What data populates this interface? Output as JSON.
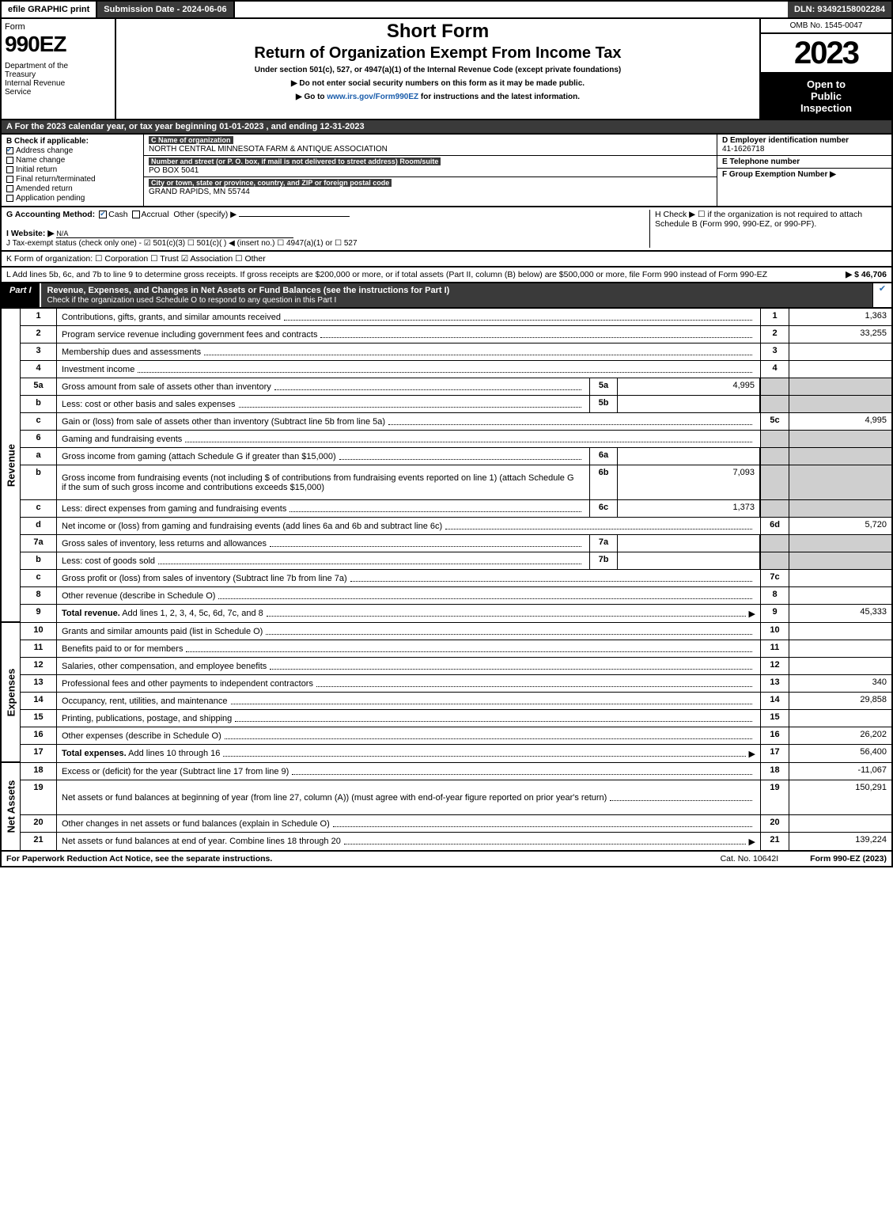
{
  "topbar": {
    "efile": "efile GRAPHIC print",
    "submission": "Submission Date - 2024-06-06",
    "dln": "DLN: 93492158002284"
  },
  "header": {
    "form": "Form",
    "formno": "990EZ",
    "dept": "Department of the Treasury\nInternal Revenue Service",
    "short": "Short Form",
    "title": "Return of Organization Exempt From Income Tax",
    "under": "Under section 501(c), 527, or 4947(a)(1) of the Internal Revenue Code (except private foundations)",
    "donot": "▶ Do not enter social security numbers on this form as it may be made public.",
    "goto": "▶ Go to www.irs.gov/Form990EZ for instructions and the latest information.",
    "omb": "OMB No. 1545-0047",
    "year": "2023",
    "open": "Open to Public Inspection"
  },
  "rowA": "A  For the 2023 calendar year, or tax year beginning 01-01-2023 , and ending 12-31-2023",
  "boxB": {
    "label": "B  Check if applicable:",
    "items": [
      {
        "label": "Address change",
        "checked": true
      },
      {
        "label": "Name change",
        "checked": false
      },
      {
        "label": "Initial return",
        "checked": false
      },
      {
        "label": "Final return/terminated",
        "checked": false
      },
      {
        "label": "Amended return",
        "checked": false
      },
      {
        "label": "Application pending",
        "checked": false
      }
    ]
  },
  "boxC": {
    "name_hdr": "C Name of organization",
    "name": "NORTH CENTRAL MINNESOTA FARM & ANTIQUE ASSOCIATION",
    "addr_hdr": "Number and street (or P. O. box, if mail is not delivered to street address)        Room/suite",
    "addr": "PO BOX 5041",
    "city_hdr": "City or town, state or province, country, and ZIP or foreign postal code",
    "city": "GRAND RAPIDS, MN  55744"
  },
  "boxDEF": {
    "D_hdr": "D Employer identification number",
    "D_val": "41-1626718",
    "E_hdr": "E Telephone number",
    "E_val": "",
    "F_hdr": "F Group Exemption Number   ▶",
    "F_val": ""
  },
  "rowG": {
    "left_label": "G Accounting Method:",
    "cash": "Cash",
    "accrual": "Accrual",
    "other": "Other (specify) ▶",
    "right": "H  Check ▶ ☐ if the organization is not required to attach Schedule B (Form 990, 990-EZ, or 990-PF)."
  },
  "rowI": {
    "label": "I Website: ▶",
    "value": "N/A"
  },
  "rowJ": "J Tax-exempt status (check only one) - ☑ 501(c)(3)  ☐ 501(c)( ) ◀ (insert no.)  ☐ 4947(a)(1) or  ☐ 527",
  "rowK": "K Form of organization:  ☐ Corporation  ☐ Trust  ☑ Association  ☐ Other",
  "rowL": {
    "text": "L Add lines 5b, 6c, and 7b to line 9 to determine gross receipts. If gross receipts are $200,000 or more, or if total assets (Part II, column (B) below) are $500,000 or more, file Form 990 instead of Form 990-EZ",
    "amount": "▶ $ 46,706"
  },
  "part1": {
    "tab": "Part I",
    "title": "Revenue, Expenses, and Changes in Net Assets or Fund Balances (see the instructions for Part I)",
    "sub": "Check if the organization used Schedule O to respond to any question in this Part I"
  },
  "sections": {
    "revenue": "Revenue",
    "expenses": "Expenses",
    "netassets": "Net Assets"
  },
  "lines": [
    {
      "section": "revenue",
      "n": "1",
      "desc": "Contributions, gifts, grants, and similar amounts received",
      "fn": "1",
      "fv": "1,363"
    },
    {
      "section": "revenue",
      "n": "2",
      "desc": "Program service revenue including government fees and contracts",
      "fn": "2",
      "fv": "33,255"
    },
    {
      "section": "revenue",
      "n": "3",
      "desc": "Membership dues and assessments",
      "fn": "3",
      "fv": ""
    },
    {
      "section": "revenue",
      "n": "4",
      "desc": "Investment income",
      "fn": "4",
      "fv": ""
    },
    {
      "section": "revenue",
      "n": "5a",
      "desc": "Gross amount from sale of assets other than inventory",
      "sub": true,
      "sn": "5a",
      "sv": "4,995",
      "shaded": true
    },
    {
      "section": "revenue",
      "n": "b",
      "desc": "Less: cost or other basis and sales expenses",
      "sub": true,
      "sn": "5b",
      "sv": "",
      "shaded": true
    },
    {
      "section": "revenue",
      "n": "c",
      "desc": "Gain or (loss) from sale of assets other than inventory (Subtract line 5b from line 5a)",
      "fn": "5c",
      "fv": "4,995"
    },
    {
      "section": "revenue",
      "n": "6",
      "desc": "Gaming and fundraising events",
      "shaded": true,
      "noamt": true
    },
    {
      "section": "revenue",
      "n": "a",
      "desc": "Gross income from gaming (attach Schedule G if greater than $15,000)",
      "sub": true,
      "sn": "6a",
      "sv": "",
      "shaded": true
    },
    {
      "section": "revenue",
      "n": "b",
      "desc": "Gross income from fundraising events (not including $              of contributions from fundraising events reported on line 1) (attach Schedule G if the sum of such gross income and contributions exceeds $15,000)",
      "sub": true,
      "sn": "6b",
      "sv": "7,093",
      "shaded": true,
      "tall": true
    },
    {
      "section": "revenue",
      "n": "c",
      "desc": "Less: direct expenses from gaming and fundraising events",
      "sub": true,
      "sn": "6c",
      "sv": "1,373",
      "shaded": true
    },
    {
      "section": "revenue",
      "n": "d",
      "desc": "Net income or (loss) from gaming and fundraising events (add lines 6a and 6b and subtract line 6c)",
      "fn": "6d",
      "fv": "5,720"
    },
    {
      "section": "revenue",
      "n": "7a",
      "desc": "Gross sales of inventory, less returns and allowances",
      "sub": true,
      "sn": "7a",
      "sv": "",
      "shaded": true
    },
    {
      "section": "revenue",
      "n": "b",
      "desc": "Less: cost of goods sold",
      "sub": true,
      "sn": "7b",
      "sv": "",
      "shaded": true
    },
    {
      "section": "revenue",
      "n": "c",
      "desc": "Gross profit or (loss) from sales of inventory (Subtract line 7b from line 7a)",
      "fn": "7c",
      "fv": ""
    },
    {
      "section": "revenue",
      "n": "8",
      "desc": "Other revenue (describe in Schedule O)",
      "fn": "8",
      "fv": ""
    },
    {
      "section": "revenue",
      "n": "9",
      "desc": "Total revenue. Add lines 1, 2, 3, 4, 5c, 6d, 7c, and 8",
      "fn": "9",
      "fv": "45,333",
      "bold": true,
      "arrow": true
    },
    {
      "section": "expenses",
      "n": "10",
      "desc": "Grants and similar amounts paid (list in Schedule O)",
      "fn": "10",
      "fv": ""
    },
    {
      "section": "expenses",
      "n": "11",
      "desc": "Benefits paid to or for members",
      "fn": "11",
      "fv": ""
    },
    {
      "section": "expenses",
      "n": "12",
      "desc": "Salaries, other compensation, and employee benefits",
      "fn": "12",
      "fv": ""
    },
    {
      "section": "expenses",
      "n": "13",
      "desc": "Professional fees and other payments to independent contractors",
      "fn": "13",
      "fv": "340"
    },
    {
      "section": "expenses",
      "n": "14",
      "desc": "Occupancy, rent, utilities, and maintenance",
      "fn": "14",
      "fv": "29,858"
    },
    {
      "section": "expenses",
      "n": "15",
      "desc": "Printing, publications, postage, and shipping",
      "fn": "15",
      "fv": ""
    },
    {
      "section": "expenses",
      "n": "16",
      "desc": "Other expenses (describe in Schedule O)",
      "fn": "16",
      "fv": "26,202"
    },
    {
      "section": "expenses",
      "n": "17",
      "desc": "Total expenses. Add lines 10 through 16",
      "fn": "17",
      "fv": "56,400",
      "bold": true,
      "arrow": true
    },
    {
      "section": "netassets",
      "n": "18",
      "desc": "Excess or (deficit) for the year (Subtract line 17 from line 9)",
      "fn": "18",
      "fv": "-11,067"
    },
    {
      "section": "netassets",
      "n": "19",
      "desc": "Net assets or fund balances at beginning of year (from line 27, column (A)) (must agree with end-of-year figure reported on prior year's return)",
      "fn": "19",
      "fv": "150,291",
      "tall": true
    },
    {
      "section": "netassets",
      "n": "20",
      "desc": "Other changes in net assets or fund balances (explain in Schedule O)",
      "fn": "20",
      "fv": ""
    },
    {
      "section": "netassets",
      "n": "21",
      "desc": "Net assets or fund balances at end of year. Combine lines 18 through 20",
      "fn": "21",
      "fv": "139,224",
      "arrow": true
    }
  ],
  "footer": {
    "left": "For Paperwork Reduction Act Notice, see the separate instructions.",
    "center": "Cat. No. 10642I",
    "right": "Form 990-EZ (2023)"
  },
  "colors": {
    "darkbar": "#3a3a3a",
    "shade": "#cfcfcf",
    "link": "#1a5dab",
    "check": "#2a6db0"
  }
}
